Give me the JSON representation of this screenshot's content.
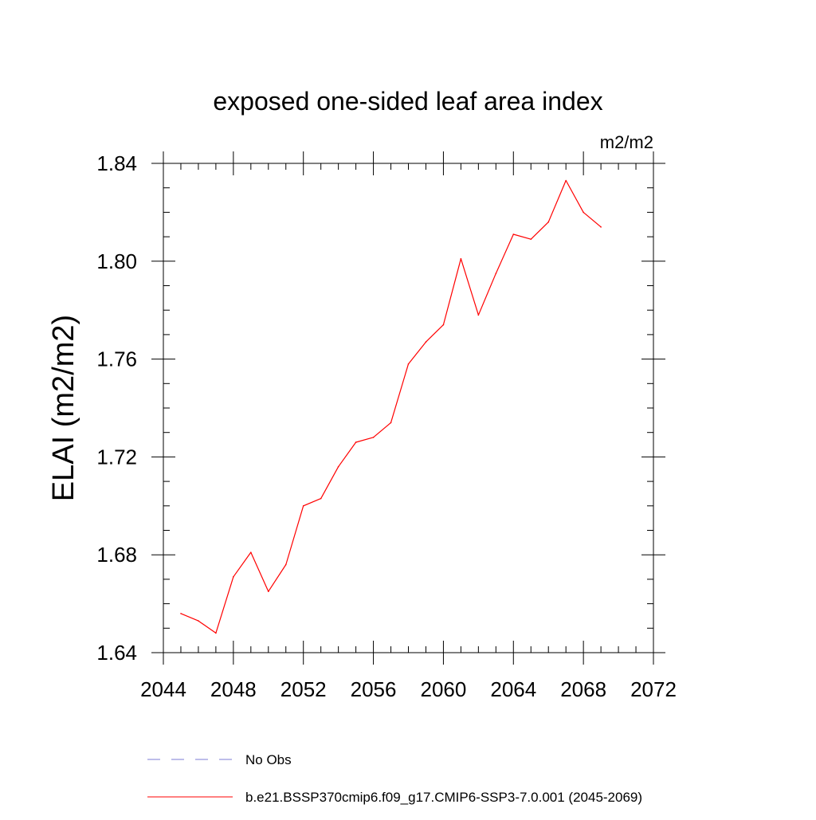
{
  "chart_data": {
    "type": "line",
    "title": "exposed one-sided leaf area index",
    "units_label": "m2/m2",
    "ylabel": "ELAI  (m2/m2)",
    "xlabel": "",
    "xlim": [
      2044,
      2072
    ],
    "ylim": [
      1.64,
      1.84
    ],
    "x_ticks": [
      2044,
      2048,
      2052,
      2056,
      2060,
      2064,
      2068,
      2072
    ],
    "x_tick_labels": [
      "2044",
      "2048",
      "2052",
      "2056",
      "2060",
      "2064",
      "2068",
      "2072"
    ],
    "y_ticks": [
      1.64,
      1.68,
      1.72,
      1.76,
      1.8,
      1.84
    ],
    "y_tick_labels": [
      "1.64",
      "1.68",
      "1.72",
      "1.76",
      "1.80",
      "1.84"
    ],
    "x_minor_step": 1,
    "y_minor_step": 0.01,
    "grid": false,
    "legend_position": "bottom",
    "series": [
      {
        "name": "b.e21.BSSP370cmip6.f09_g17.CMIP6-SSP3-7.0.001 (2045-2069)",
        "color": "#ff0000",
        "dash": "solid",
        "x": [
          2045,
          2046,
          2047,
          2048,
          2049,
          2050,
          2051,
          2052,
          2053,
          2054,
          2055,
          2056,
          2057,
          2058,
          2059,
          2060,
          2061,
          2062,
          2063,
          2064,
          2065,
          2066,
          2067,
          2068,
          2069
        ],
        "y": [
          1.656,
          1.653,
          1.648,
          1.671,
          1.681,
          1.665,
          1.676,
          1.7,
          1.703,
          1.716,
          1.726,
          1.728,
          1.734,
          1.758,
          1.767,
          1.774,
          1.801,
          1.778,
          1.795,
          1.811,
          1.809,
          1.816,
          1.833,
          1.82,
          1.814
        ]
      }
    ],
    "legend": [
      {
        "label": "No Obs",
        "color": "#7b7bd6",
        "dash": "dashed"
      },
      {
        "label": "b.e21.BSSP370cmip6.f09_g17.CMIP6-SSP3-7.0.001 (2045-2069)",
        "color": "#ff0000",
        "dash": "solid"
      }
    ]
  }
}
